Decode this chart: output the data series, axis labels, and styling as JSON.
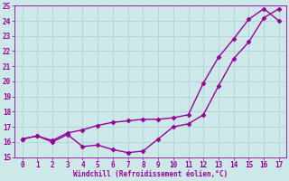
{
  "line1_x": [
    0,
    1,
    2,
    3,
    4,
    5,
    6,
    7,
    8,
    9,
    10,
    11,
    12,
    13,
    14,
    15,
    16,
    17
  ],
  "line1_y": [
    16.2,
    16.4,
    16.0,
    16.5,
    15.7,
    15.8,
    15.5,
    15.3,
    15.4,
    16.2,
    17.0,
    17.2,
    17.8,
    19.7,
    21.5,
    22.6,
    24.2,
    24.8
  ],
  "line2_x": [
    0,
    1,
    2,
    3,
    4,
    5,
    6,
    7,
    8,
    9,
    10,
    11,
    12,
    13,
    14,
    15,
    16,
    17
  ],
  "line2_y": [
    16.2,
    16.4,
    16.1,
    16.6,
    16.8,
    17.1,
    17.3,
    17.4,
    17.5,
    17.5,
    17.6,
    17.8,
    19.9,
    21.6,
    22.8,
    24.1,
    24.8,
    24.0
  ],
  "color": "#990099",
  "marker": "D",
  "markersize": 2.5,
  "xlabel": "Windchill (Refroidissement éolien,°C)",
  "xlim": [
    -0.5,
    17.5
  ],
  "ylim": [
    15,
    25
  ],
  "yticks": [
    15,
    16,
    17,
    18,
    19,
    20,
    21,
    22,
    23,
    24,
    25
  ],
  "xticks": [
    0,
    1,
    2,
    3,
    4,
    5,
    6,
    7,
    8,
    9,
    10,
    11,
    12,
    13,
    14,
    15,
    16,
    17
  ],
  "bg_color": "#cce8e8",
  "grid_color": "#aacfcf",
  "linewidth": 1.0,
  "tick_fontsize": 5.5,
  "xlabel_fontsize": 5.5
}
